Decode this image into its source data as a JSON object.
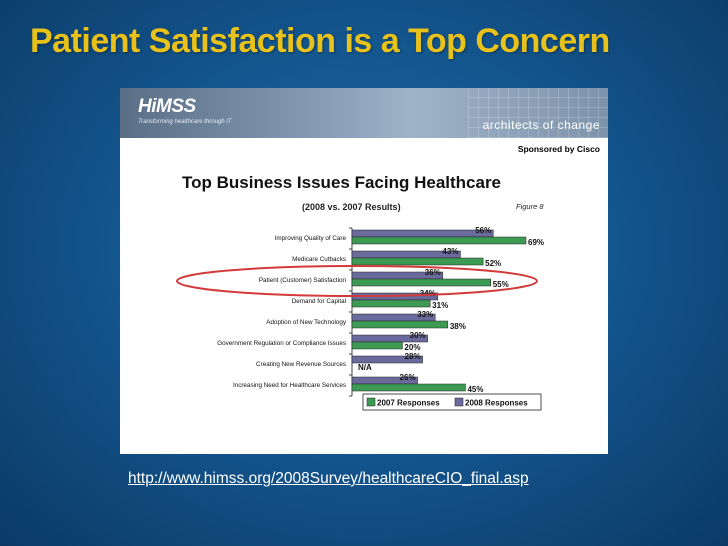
{
  "slide": {
    "title": "Patient Satisfaction is a Top Concern",
    "source_url": "http://www.himss.org/2008Survey/healthcareCIO_final.asp"
  },
  "banner": {
    "logo": "HiMSS",
    "tagline": "Transforming healthcare through IT",
    "slogan": "architects of change",
    "sponsor": "Sponsored by Cisco"
  },
  "colors": {
    "series_2007": "#3d9a52",
    "series_2008": "#6a6a9c",
    "highlight_ellipse": "#d33a3a",
    "title": "#e8c21a"
  },
  "chart_data": {
    "type": "bar",
    "orientation": "horizontal",
    "title": "Top Business Issues Facing Healthcare",
    "subtitle": "(2008 vs. 2007 Results)",
    "figure_label": "Figure 8",
    "categories": [
      "Improving Quality of Care",
      "Medicare Cutbacks",
      "Patient (Customer) Satisfaction",
      "Demand for Capital",
      "Adoption of New Technology",
      "Government Regulation or Compliance Issues",
      "Creating New Revenue Sources",
      "Increasing Need for Healthcare Services"
    ],
    "series": [
      {
        "name": "2008 Responses",
        "values": [
          56,
          43,
          36,
          34,
          33,
          30,
          28,
          26
        ],
        "labels": [
          "56%",
          "43%",
          "36%",
          "34%",
          "33%",
          "30%",
          "28%",
          "26%"
        ]
      },
      {
        "name": "2007 Responses",
        "values": [
          69,
          52,
          55,
          31,
          38,
          20,
          null,
          45
        ],
        "labels": [
          "69%",
          "52%",
          "55%",
          "31%",
          "38%",
          "20%",
          "N/A",
          "45%"
        ]
      }
    ],
    "xlim": [
      0,
      72
    ],
    "highlighted_category": "Patient (Customer) Satisfaction",
    "legend": {
      "position": "bottom",
      "entries": [
        "2007 Responses",
        "2008 Responses"
      ]
    },
    "grid": false
  }
}
